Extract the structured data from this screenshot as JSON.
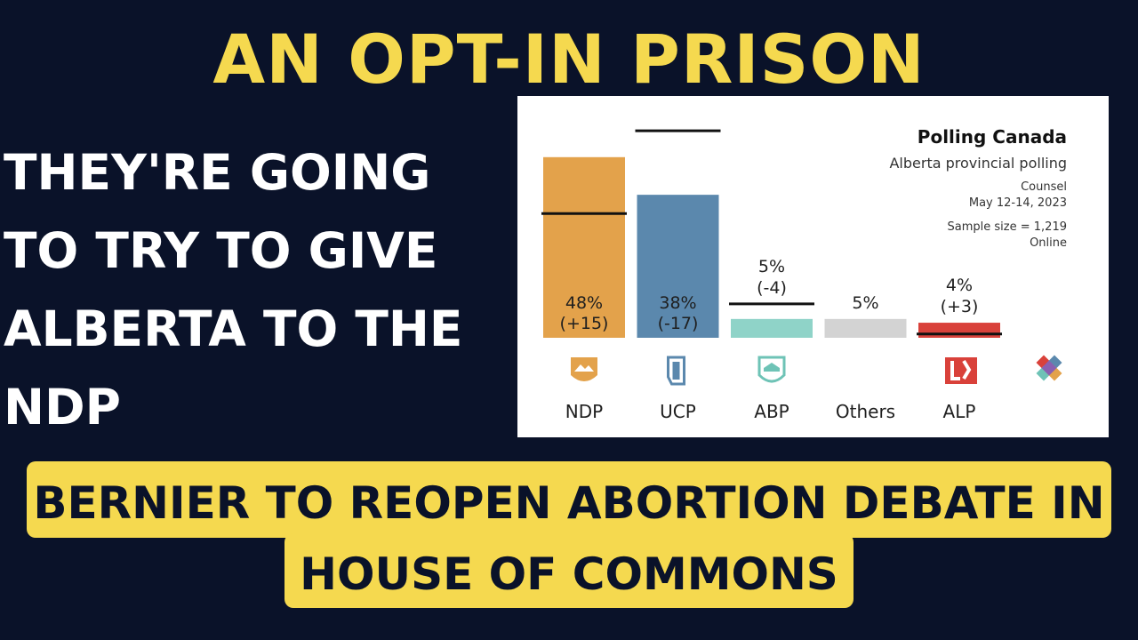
{
  "headline": "AN OPT-IN PRISON",
  "subhead": "THEY'RE GOING TO TRY TO GIVE ALBERTA TO THE NDP",
  "banner": "BERNIER TO REOPEN ABORTION DEBATE IN HOUSE OF COMMONS",
  "colors": {
    "background": "#0a1229",
    "yellow": "#f5d94f",
    "ndp": "#e3a24b",
    "ucp": "#5b88ad",
    "abp": "#8fd3c8",
    "others": "#d3d3d3",
    "alp": "#d9413a"
  },
  "chart_data": {
    "type": "bar",
    "title": "Polling Canada",
    "subtitle": "Alberta provincial polling",
    "pollster": "Counsel",
    "dates": "May 12-14, 2023",
    "sample": "Sample size = 1,219",
    "method": "Online",
    "categories": [
      "NDP",
      "UCP",
      "ABP",
      "Others",
      "ALP"
    ],
    "values": [
      48,
      38,
      5,
      5,
      4
    ],
    "previous": [
      33,
      55,
      9,
      null,
      1
    ],
    "value_labels": [
      "48%",
      "38%",
      "5%",
      "5%",
      "4%"
    ],
    "change_labels": [
      "(+15)",
      "(-17)",
      "(-4)",
      "",
      "(+3)"
    ],
    "icons": [
      "ndp-logo-icon",
      "ucp-logo-icon",
      "abp-logo-icon",
      "",
      "alp-logo-icon"
    ],
    "extra_icon": "polling-canada-logo-icon",
    "ylim": [
      0,
      60
    ]
  }
}
